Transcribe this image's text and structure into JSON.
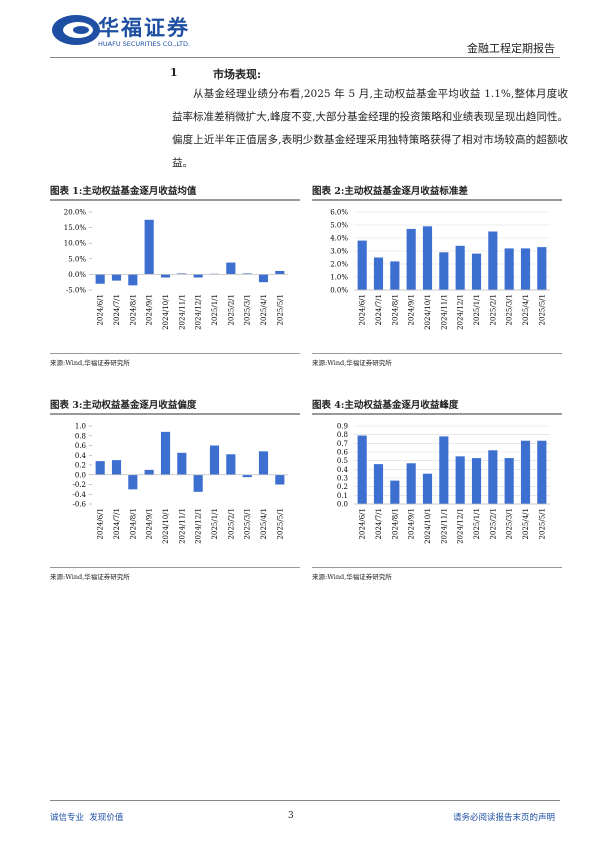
{
  "header": {
    "logo_cn": "华福证券",
    "logo_en": "HUAFU SECURITIES CO.,LTD.",
    "report_type": "金融工程定期报告"
  },
  "section": {
    "number": "1",
    "title": "市场表现:",
    "paragraph": "从基金经理业绩分布看,2025 年 5 月,主动权益基金平均收益 1.1%,整体月度收益率标准差稍微扩大,峰度不变,大部分基金经理的投资策略和业绩表现呈现出趋同性。偏度上近半年正值居多,表明少数基金经理采用独特策略获得了相对市场较高的超额收益。"
  },
  "chart_data": [
    {
      "type": "bar",
      "title": "图表 1:主动权益基金逐月收益均值",
      "source": "来源:Wind,华福证券研究所",
      "categories": [
        "2024/6/1",
        "2024/7/1",
        "2024/8/1",
        "2024/9/1",
        "2024/10/1",
        "2024/11/1",
        "2024/12/1",
        "2025/1/1",
        "2025/2/1",
        "2025/3/1",
        "2025/4/1",
        "2025/5/1"
      ],
      "values": [
        -3.0,
        -2.0,
        -3.5,
        17.5,
        -1.0,
        0.3,
        -1.0,
        0.2,
        3.8,
        0.3,
        -2.5,
        1.1
      ],
      "color": "#3d6fd1",
      "ylim": [
        -5,
        20
      ],
      "yticks": [
        {
          "value": -5,
          "label": "-5.0%"
        },
        {
          "value": 0,
          "label": "0.0%"
        },
        {
          "value": 5,
          "label": "5.0%"
        },
        {
          "value": 10,
          "label": "10.0%"
        },
        {
          "value": 15,
          "label": "15.0%"
        },
        {
          "value": 20,
          "label": "20.0%"
        }
      ],
      "grid": false
    },
    {
      "type": "bar",
      "title": "图表 2:主动权益基金逐月收益标准差",
      "source": "来源:Wind,华福证券研究所",
      "categories": [
        "2024/6/1",
        "2024/7/1",
        "2024/8/1",
        "2024/9/1",
        "2024/10/1",
        "2024/11/1",
        "2024/12/1",
        "2025/1/1",
        "2025/2/1",
        "2025/3/1",
        "2025/4/1",
        "2025/5/1"
      ],
      "values": [
        3.8,
        2.5,
        2.2,
        4.7,
        4.9,
        2.9,
        3.4,
        2.8,
        4.5,
        3.2,
        3.2,
        3.3
      ],
      "color": "#3d6fd1",
      "ylim": [
        0,
        6
      ],
      "yticks": [
        {
          "value": 0,
          "label": "0.0%"
        },
        {
          "value": 1,
          "label": "1.0%"
        },
        {
          "value": 2,
          "label": "2.0%"
        },
        {
          "value": 3,
          "label": "3.0%"
        },
        {
          "value": 4,
          "label": "4.0%"
        },
        {
          "value": 5,
          "label": "5.0%"
        },
        {
          "value": 6,
          "label": "6.0%"
        }
      ],
      "grid": true
    },
    {
      "type": "bar",
      "title": "图表 3:主动权益基金逐月收益偏度",
      "source": "来源:Wind,华福证券研究所",
      "categories": [
        "2024/6/1",
        "2024/7/1",
        "2024/8/1",
        "2024/9/1",
        "2024/10/1",
        "2024/11/1",
        "2024/12/1",
        "2025/1/1",
        "2025/2/1",
        "2025/3/1",
        "2025/4/1",
        "2025/5/1"
      ],
      "values": [
        0.28,
        0.3,
        -0.3,
        0.1,
        0.88,
        0.45,
        -0.35,
        0.6,
        0.42,
        -0.05,
        0.48,
        -0.2
      ],
      "color": "#3d6fd1",
      "ylim": [
        -0.6,
        1.0
      ],
      "yticks": [
        -0.6,
        -0.4,
        -0.2,
        {
          "value": 0,
          "label": "0.0"
        },
        0.2,
        0.4,
        0.6,
        0.8,
        {
          "value": 1,
          "label": "1.0"
        }
      ],
      "grid": false
    },
    {
      "type": "bar",
      "title": "图表 4:主动权益基金逐月收益峰度",
      "source": "来源:Wind,华福证券研究所",
      "categories": [
        "2024/6/1",
        "2024/7/1",
        "2024/8/1",
        "2024/9/1",
        "2024/10/1",
        "2024/11/1",
        "2024/12/1",
        "2025/1/1",
        "2025/2/1",
        "2025/3/1",
        "2025/4/1",
        "2025/5/1"
      ],
      "values": [
        0.79,
        0.46,
        0.27,
        0.47,
        0.35,
        0.78,
        0.55,
        0.53,
        0.62,
        0.53,
        0.73,
        0.73
      ],
      "color": "#3d6fd1",
      "ylim": [
        0,
        0.9
      ],
      "yticks": [
        {
          "value": 0,
          "label": "0.0"
        },
        0.1,
        0.2,
        0.3,
        0.4,
        0.5,
        0.6,
        0.7,
        0.8,
        0.9
      ],
      "grid": true
    }
  ],
  "footer": {
    "slogan": "诚信专业  发现价值",
    "page": "3",
    "disclaimer": "请务必阅读报告末页的声明"
  }
}
